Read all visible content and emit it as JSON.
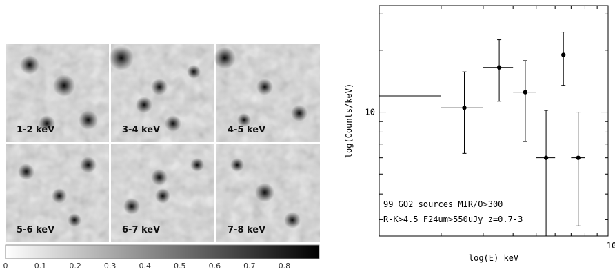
{
  "colors": {
    "image_light": "#e8e8e8",
    "image_dark": "#111111",
    "panel_divider": "#ffffff",
    "axis": "#000000"
  },
  "image_panels": [
    {
      "label": "1-2 keV"
    },
    {
      "label": "3-4 keV"
    },
    {
      "label": "4-5 keV"
    },
    {
      "label": "5-6 keV"
    },
    {
      "label": "6-7 keV"
    },
    {
      "label": "7-8 keV"
    }
  ],
  "colorbar": {
    "ticks": [
      "0",
      "0.1",
      "0.2",
      "0.3",
      "0.4",
      "0.5",
      "0.6",
      "0.7",
      "0.8"
    ],
    "tick_values": [
      0,
      0.1,
      0.2,
      0.3,
      0.4,
      0.5,
      0.6,
      0.7,
      0.8
    ],
    "range": [
      0,
      0.9
    ]
  },
  "chart_data": {
    "type": "scatter",
    "xlabel": "log(E) keV",
    "ylabel": "log(Counts/keV)",
    "x_log": true,
    "y_log": true,
    "xlim": [
      1.1,
      10
    ],
    "ylim": [
      2.5,
      33
    ],
    "x_tick_labels": [
      {
        "value": 10,
        "label": "10"
      }
    ],
    "y_tick_labels": [
      {
        "value": 10,
        "label": "10"
      }
    ],
    "annotations": [
      "99 GO2 sources MIR/O>300",
      "R-K>4.5 F24um>550uJy z=0.7-3"
    ],
    "points": [
      {
        "x": 1.5,
        "xerr": [
          0.4,
          0.5
        ],
        "y": 12.0,
        "yerr": [
          0,
          0
        ],
        "marker": false
      },
      {
        "x": 2.5,
        "xerr": [
          0.5,
          0.5
        ],
        "y": 10.5,
        "yerr": [
          4.2,
          5.2
        ],
        "marker": true
      },
      {
        "x": 3.5,
        "xerr": [
          0.5,
          0.5
        ],
        "y": 16.5,
        "yerr": [
          5.2,
          6.0
        ],
        "marker": true
      },
      {
        "x": 4.5,
        "xerr": [
          0.5,
          0.5
        ],
        "y": 12.5,
        "yerr": [
          5.3,
          5.3
        ],
        "marker": true
      },
      {
        "x": 5.5,
        "xerr": [
          0.5,
          0.5
        ],
        "y": 6.0,
        "yerr": [
          6.0,
          4.2
        ],
        "marker": true
      },
      {
        "x": 6.5,
        "xerr": [
          0.5,
          0.5
        ],
        "y": 19.0,
        "yerr": [
          5.5,
          5.5
        ],
        "marker": true
      },
      {
        "x": 7.5,
        "xerr": [
          0.5,
          0.5
        ],
        "y": 6.0,
        "yerr": [
          3.2,
          4.0
        ],
        "marker": true
      }
    ]
  }
}
